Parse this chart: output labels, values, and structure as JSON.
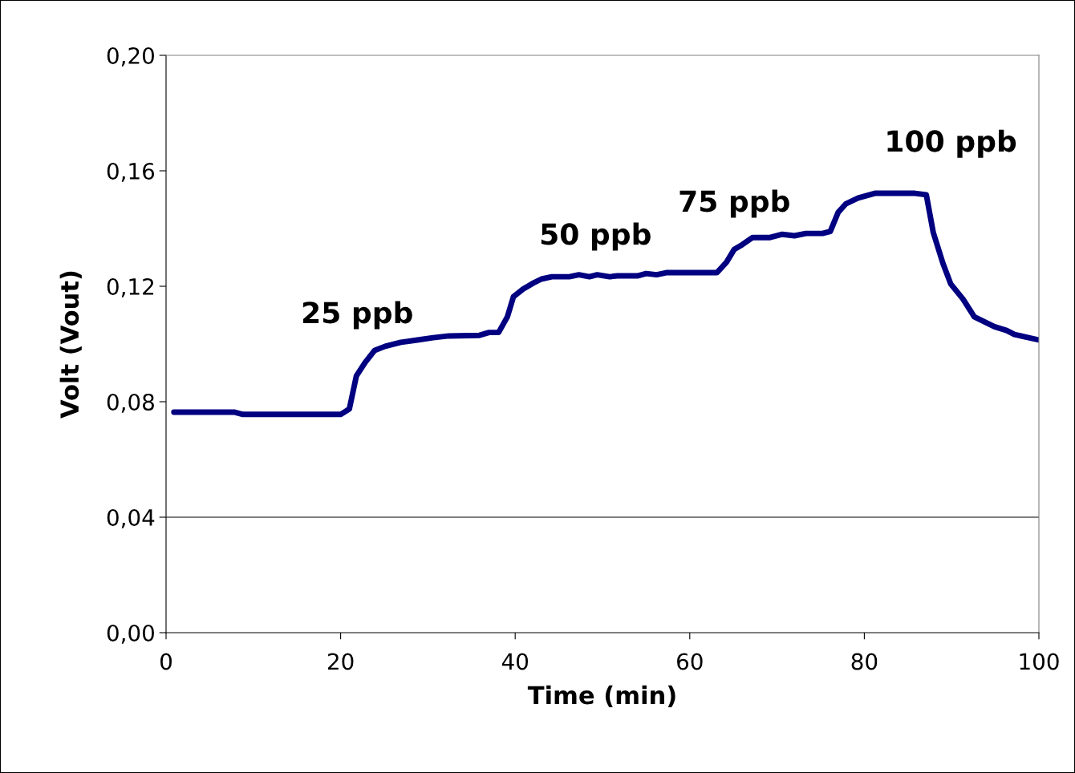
{
  "chart_data": {
    "type": "line",
    "xlabel": "Time (min)",
    "ylabel": "Volt (Vout)",
    "x": [
      0.9,
      7.8,
      8.8,
      20.0,
      21.0,
      21.8,
      22.8,
      23.9,
      25.1,
      26.9,
      28.8,
      30.6,
      32.4,
      35.9,
      37.0,
      38.1,
      39.1,
      39.8,
      40.9,
      42.0,
      43.0,
      44.2,
      46.2,
      47.3,
      48.5,
      49.4,
      50.8,
      51.7,
      54.0,
      55.0,
      56.2,
      57.3,
      63.1,
      64.2,
      65.1,
      66.0,
      67.2,
      69.2,
      70.6,
      72.0,
      73.3,
      75.2,
      76.1,
      77.0,
      77.9,
      79.3,
      81.2,
      85.8,
      87.1,
      87.9,
      89.0,
      89.9,
      91.3,
      92.6,
      94.9,
      96.3,
      97.2,
      100.0
    ],
    "series": [
      {
        "color": "#000080",
        "values": [
          0.0764,
          0.0764,
          0.0756,
          0.0756,
          0.0775,
          0.0889,
          0.0936,
          0.0978,
          0.0992,
          0.1006,
          0.1014,
          0.1022,
          0.1028,
          0.103,
          0.104,
          0.104,
          0.1094,
          0.1164,
          0.119,
          0.121,
          0.1225,
          0.1233,
          0.1233,
          0.124,
          0.1233,
          0.124,
          0.1233,
          0.1236,
          0.1236,
          0.1244,
          0.124,
          0.1247,
          0.1247,
          0.1283,
          0.1328,
          0.1344,
          0.1369,
          0.1369,
          0.138,
          0.1375,
          0.1383,
          0.1383,
          0.139,
          0.1456,
          0.1486,
          0.1506,
          0.1522,
          0.1522,
          0.1517,
          0.1386,
          0.128,
          0.1208,
          0.1156,
          0.1094,
          0.106,
          0.1047,
          0.1033,
          0.1014
        ]
      }
    ],
    "xlim": [
      0,
      100
    ],
    "xticks": [
      0,
      20,
      40,
      60,
      80,
      100
    ],
    "ylim": [
      0,
      0.2
    ],
    "yticks": [
      {
        "value": 0,
        "label": "0,00"
      },
      {
        "value": 0.04,
        "label": "0,04"
      },
      {
        "value": 0.08,
        "label": "0,08"
      },
      {
        "value": 0.12,
        "label": "0,12"
      },
      {
        "value": 0.16,
        "label": "0,16"
      },
      {
        "value": 0.2,
        "label": "0,20"
      }
    ],
    "ref_lines": [
      {
        "axis": "y",
        "value": 0.04,
        "color": "#000000"
      }
    ],
    "annotations": [
      "25 ppb",
      "50 ppb",
      "75 ppb",
      "100 ppb"
    ],
    "grid": false,
    "legend": false,
    "marker": "none",
    "line_style": "solid"
  }
}
